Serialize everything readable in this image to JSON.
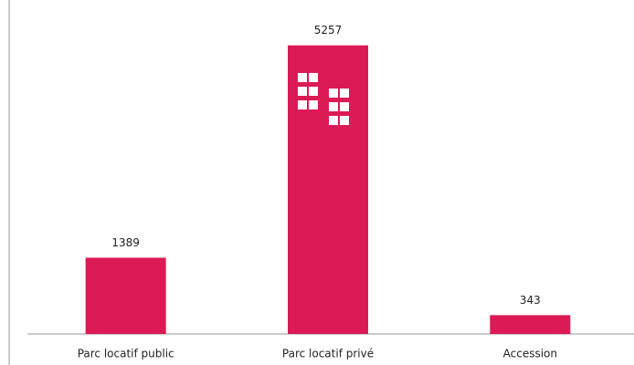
{
  "chart_data": {
    "type": "bar",
    "categories": [
      "Parc locatif public",
      "Parc locatif privé",
      "Accession"
    ],
    "values": [
      1389,
      5257,
      343
    ],
    "color": "#dc1a55",
    "ylim": [
      0,
      6000
    ],
    "grid": false
  }
}
